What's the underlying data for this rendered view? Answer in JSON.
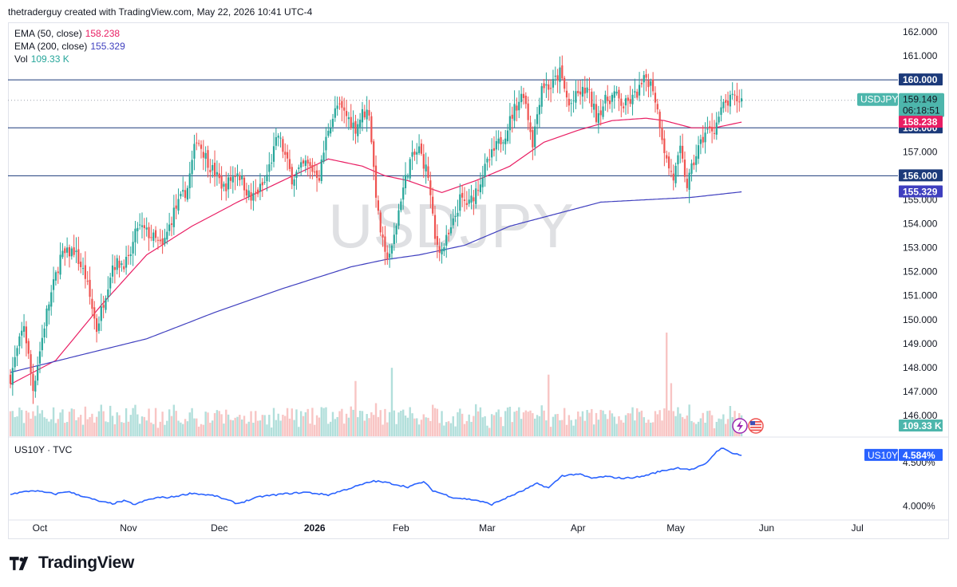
{
  "header": {
    "caption": "thetraderguy created with TradingView.com, May 22, 2026 10:41 UTC-4"
  },
  "footer": {
    "brand": "TradingView"
  },
  "colors": {
    "up": "#26a69a",
    "down": "#ef5350",
    "ema50": "#e91e63",
    "ema200": "#3f3fbf",
    "us10y": "#2962ff",
    "level": "#1c3a7a",
    "vol_up": "#b2dfdb",
    "vol_down": "#f8c5c4"
  },
  "chart_data": [
    {
      "type": "candlestick",
      "symbol_watermark": "USDJPY",
      "legend": [
        {
          "label": "EMA (50, close)",
          "value": "158.238",
          "color": "#e91e63"
        },
        {
          "label": "EMA (200, close)",
          "value": "155.329",
          "color": "#3f3fbf"
        },
        {
          "label": "Vol",
          "value": "109.33 K",
          "color": "#26a69a"
        }
      ],
      "ylim": [
        146.0,
        162.0
      ],
      "y_ticks": [
        "162.000",
        "161.000",
        "160.000",
        "159.000",
        "158.000",
        "157.000",
        "156.000",
        "155.000",
        "154.000",
        "153.000",
        "152.000",
        "151.000",
        "150.000",
        "149.000",
        "148.000",
        "147.000",
        "146.000"
      ],
      "x_ticks": [
        "Oct",
        "Nov",
        "Dec",
        "2026",
        "Feb",
        "Mar",
        "Apr",
        "May",
        "Jun",
        "Jul"
      ],
      "horizontal_levels": [
        "160.000",
        "158.000",
        "156.000"
      ],
      "price_labels": {
        "symbol": "USDJPY",
        "last": "159.149",
        "countdown": "06:18:51",
        "ema50": "158.238",
        "ema200": "155.329",
        "volume": "109.33 K"
      },
      "close_anchors": [
        [
          0,
          147.6
        ],
        [
          6,
          149.8
        ],
        [
          10,
          147.1
        ],
        [
          16,
          150.3
        ],
        [
          22,
          152.6
        ],
        [
          28,
          152.9
        ],
        [
          33,
          151.8
        ],
        [
          38,
          149.6
        ],
        [
          45,
          152.3
        ],
        [
          52,
          152.4
        ],
        [
          56,
          153.9
        ],
        [
          62,
          153.5
        ],
        [
          67,
          153.0
        ],
        [
          72,
          154.5
        ],
        [
          78,
          155.5
        ],
        [
          82,
          157.6
        ],
        [
          88,
          156.4
        ],
        [
          94,
          155.5
        ],
        [
          100,
          156.2
        ],
        [
          106,
          155.0
        ],
        [
          112,
          155.7
        ],
        [
          118,
          157.7
        ],
        [
          124,
          155.9
        ],
        [
          130,
          156.5
        ],
        [
          136,
          156.0
        ],
        [
          140,
          158.0
        ],
        [
          144,
          158.9
        ],
        [
          148,
          158.5
        ],
        [
          152,
          158.0
        ],
        [
          155,
          158.6
        ],
        [
          158,
          158.7
        ],
        [
          160,
          156.3
        ],
        [
          162,
          154.3
        ],
        [
          165,
          152.6
        ],
        [
          168,
          152.9
        ],
        [
          172,
          155.1
        ],
        [
          176,
          156.6
        ],
        [
          180,
          157.1
        ],
        [
          184,
          156.0
        ],
        [
          187,
          153.3
        ],
        [
          190,
          152.9
        ],
        [
          194,
          153.7
        ],
        [
          198,
          155.0
        ],
        [
          202,
          154.8
        ],
        [
          206,
          155.6
        ],
        [
          210,
          156.5
        ],
        [
          214,
          157.2
        ],
        [
          218,
          157.8
        ],
        [
          222,
          158.8
        ],
        [
          226,
          159.5
        ],
        [
          230,
          157.4
        ],
        [
          234,
          159.8
        ],
        [
          238,
          159.7
        ],
        [
          242,
          160.3
        ],
        [
          246,
          158.9
        ],
        [
          250,
          159.4
        ],
        [
          254,
          159.6
        ],
        [
          258,
          158.5
        ],
        [
          262,
          159.1
        ],
        [
          266,
          159.4
        ],
        [
          270,
          158.9
        ],
        [
          274,
          159.2
        ],
        [
          277,
          159.6
        ],
        [
          280,
          160.1
        ],
        [
          283,
          159.7
        ],
        [
          286,
          158.2
        ],
        [
          289,
          156.6
        ],
        [
          292,
          155.9
        ],
        [
          295,
          157.0
        ],
        [
          298,
          155.6
        ],
        [
          302,
          156.9
        ],
        [
          306,
          157.8
        ],
        [
          310,
          158.0
        ],
        [
          314,
          158.9
        ],
        [
          318,
          159.2
        ],
        [
          322,
          159.149
        ]
      ],
      "ema50_anchors": [
        [
          0,
          147.3
        ],
        [
          20,
          148.3
        ],
        [
          40,
          150.6
        ],
        [
          60,
          152.7
        ],
        [
          80,
          153.9
        ],
        [
          100,
          154.9
        ],
        [
          120,
          155.8
        ],
        [
          140,
          156.7
        ],
        [
          155,
          156.4
        ],
        [
          165,
          156.0
        ],
        [
          175,
          155.8
        ],
        [
          190,
          155.3
        ],
        [
          205,
          155.8
        ],
        [
          220,
          156.4
        ],
        [
          235,
          157.4
        ],
        [
          250,
          157.9
        ],
        [
          265,
          158.3
        ],
        [
          280,
          158.4
        ],
        [
          288,
          158.3
        ],
        [
          300,
          158.0
        ],
        [
          310,
          158.0
        ],
        [
          322,
          158.238
        ]
      ],
      "ema200_anchors": [
        [
          0,
          147.8
        ],
        [
          30,
          148.5
        ],
        [
          60,
          149.2
        ],
        [
          90,
          150.3
        ],
        [
          120,
          151.3
        ],
        [
          150,
          152.2
        ],
        [
          165,
          152.5
        ],
        [
          180,
          152.7
        ],
        [
          200,
          153.1
        ],
        [
          220,
          153.9
        ],
        [
          240,
          154.4
        ],
        [
          260,
          154.9
        ],
        [
          280,
          155.0
        ],
        [
          300,
          155.1
        ],
        [
          322,
          155.329
        ]
      ]
    },
    {
      "type": "line",
      "symbol": "US10Y · TVC",
      "ylim": [
        3.86,
        4.72
      ],
      "y_ticks": [
        "4.500%",
        "4.000%"
      ],
      "last_label": "US10Y",
      "last_value": "4.584%",
      "anchors": [
        [
          0,
          4.14
        ],
        [
          10,
          4.18
        ],
        [
          20,
          4.14
        ],
        [
          25,
          4.17
        ],
        [
          30,
          4.13
        ],
        [
          40,
          4.05
        ],
        [
          45,
          4.03
        ],
        [
          50,
          4.06
        ],
        [
          55,
          4.02
        ],
        [
          60,
          4.07
        ],
        [
          65,
          4.1
        ],
        [
          70,
          4.1
        ],
        [
          80,
          4.15
        ],
        [
          90,
          4.12
        ],
        [
          100,
          4.03
        ],
        [
          110,
          4.11
        ],
        [
          120,
          4.14
        ],
        [
          130,
          4.16
        ],
        [
          140,
          4.13
        ],
        [
          150,
          4.21
        ],
        [
          160,
          4.29
        ],
        [
          166,
          4.27
        ],
        [
          175,
          4.22
        ],
        [
          182,
          4.28
        ],
        [
          186,
          4.18
        ],
        [
          195,
          4.1
        ],
        [
          205,
          4.07
        ],
        [
          212,
          4.02
        ],
        [
          217,
          4.08
        ],
        [
          225,
          4.17
        ],
        [
          232,
          4.26
        ],
        [
          237,
          4.21
        ],
        [
          243,
          4.35
        ],
        [
          250,
          4.37
        ],
        [
          256,
          4.32
        ],
        [
          262,
          4.34
        ],
        [
          270,
          4.32
        ],
        [
          278,
          4.34
        ],
        [
          286,
          4.4
        ],
        [
          294,
          4.44
        ],
        [
          300,
          4.42
        ],
        [
          306,
          4.48
        ],
        [
          310,
          4.6
        ],
        [
          313,
          4.67
        ],
        [
          317,
          4.62
        ],
        [
          322,
          4.584
        ]
      ]
    }
  ]
}
